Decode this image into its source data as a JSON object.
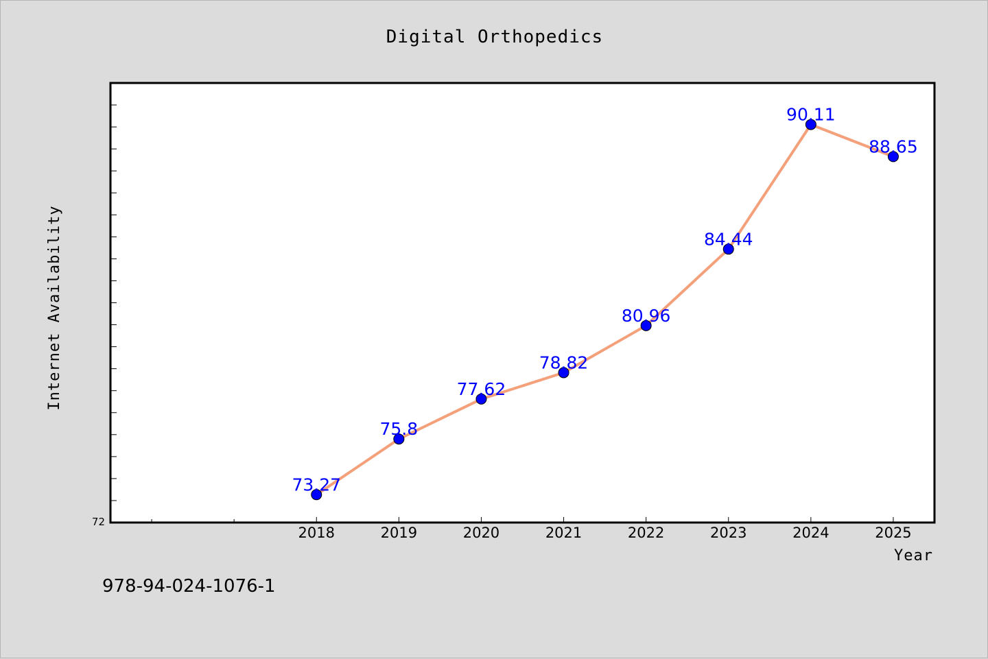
{
  "chart_data": {
    "type": "line",
    "title": "Digital Orthopedics",
    "xlabel": "Year",
    "ylabel": "Internet Availability",
    "categories": [
      "2018",
      "2019",
      "2020",
      "2021",
      "2022",
      "2023",
      "2024",
      "2025"
    ],
    "series": [
      {
        "values": [
          73.27,
          75.8,
          77.62,
          78.82,
          80.96,
          84.44,
          90.11,
          88.65
        ],
        "labels": [
          "73.27",
          "75.8",
          "77.62",
          "78.82",
          "80.96",
          "84.44",
          "90.11",
          "88.65"
        ]
      }
    ],
    "y_tick_labels": [
      "72"
    ],
    "ylim": [
      72,
      92
    ],
    "xlim": [
      -2.5,
      7.5
    ],
    "y_minor_tick_count": 19,
    "x_minor_ticks": [
      -2,
      -1
    ],
    "grid": false,
    "legend": "none",
    "line_color": "#f4a07a",
    "marker_color": "#0000ff",
    "data_label_color": "#0000ff",
    "background_color": "#dcdcdc",
    "plot_background_color": "#ffffff"
  },
  "footnote": "978-94-024-1076-1"
}
